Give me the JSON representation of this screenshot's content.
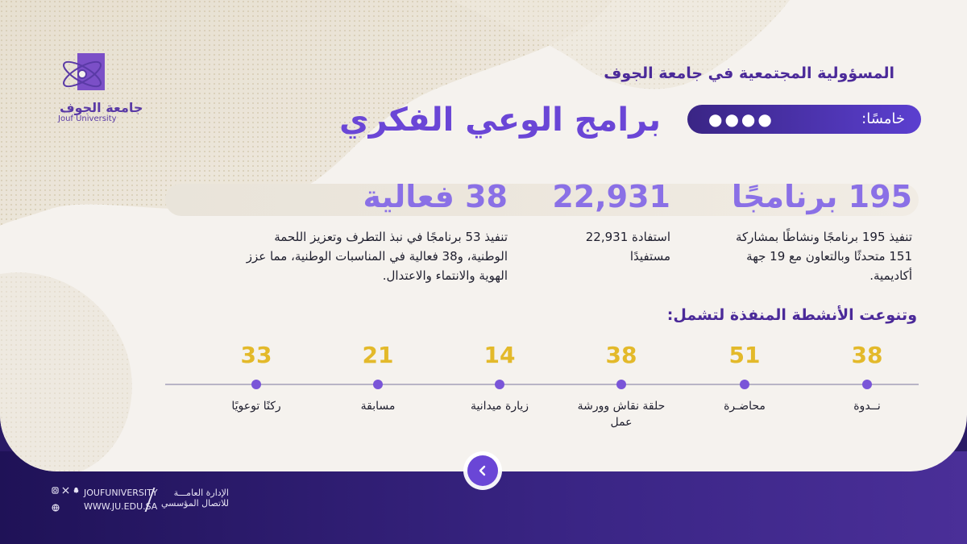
{
  "header": {
    "subtitle": "المسؤولية المجتمعية في جامعة الجوف",
    "title": "برامج الوعي الفكري",
    "section_label": "خامسًا:",
    "pagination_dots": "●●●●"
  },
  "logo": {
    "name_ar": "جامعة الجوف",
    "name_en": "Jouf University",
    "icon": "atom-logo-icon"
  },
  "stats": [
    {
      "value": "195 برنامجًا",
      "description": "تنفيذ 195 برنامجًا ونشاطًا بمشاركة 151 متحدثًا وبالتعاون مع 19 جهة أكاديمية."
    },
    {
      "value": "22,931",
      "description": "استفادة 22,931 مستفيدًا"
    },
    {
      "value": "38 فعالية",
      "description": "تنفيذ 53 برنامجًا في نبذ التطرف وتعزيز اللحمة الوطنية، و38 فعالية في المناسبات الوطنية، مما عزز الهوية والانتماء والاعتدال."
    }
  ],
  "activities": {
    "title": "وتنوعت الأنشطة المنفذة لتشمل:",
    "items": [
      {
        "count": "38",
        "label": "نــدوة"
      },
      {
        "count": "51",
        "label": "محاضـرة"
      },
      {
        "count": "38",
        "label": "حلقة نقاش وورشة عمل"
      },
      {
        "count": "14",
        "label": "زيارة ميدانية"
      },
      {
        "count": "21",
        "label": "مسابقة"
      },
      {
        "count": "33",
        "label": "ركنًا توعويًا"
      }
    ]
  },
  "footer": {
    "dept_line1": "الإدارة العامـــة",
    "dept_line2": "للاتصال المؤسسي",
    "handle": "JOUFUNIVERSITY",
    "website": "WWW.JU.EDU.SA",
    "social_icons": [
      "snapchat-icon",
      "x-icon",
      "instagram-icon",
      "web-icon"
    ]
  },
  "colors": {
    "primary_purple": "#6a46d6",
    "dark_purple": "#2a1a66",
    "accent_gold": "#e3b92a",
    "light_purple": "#8a70e6"
  }
}
